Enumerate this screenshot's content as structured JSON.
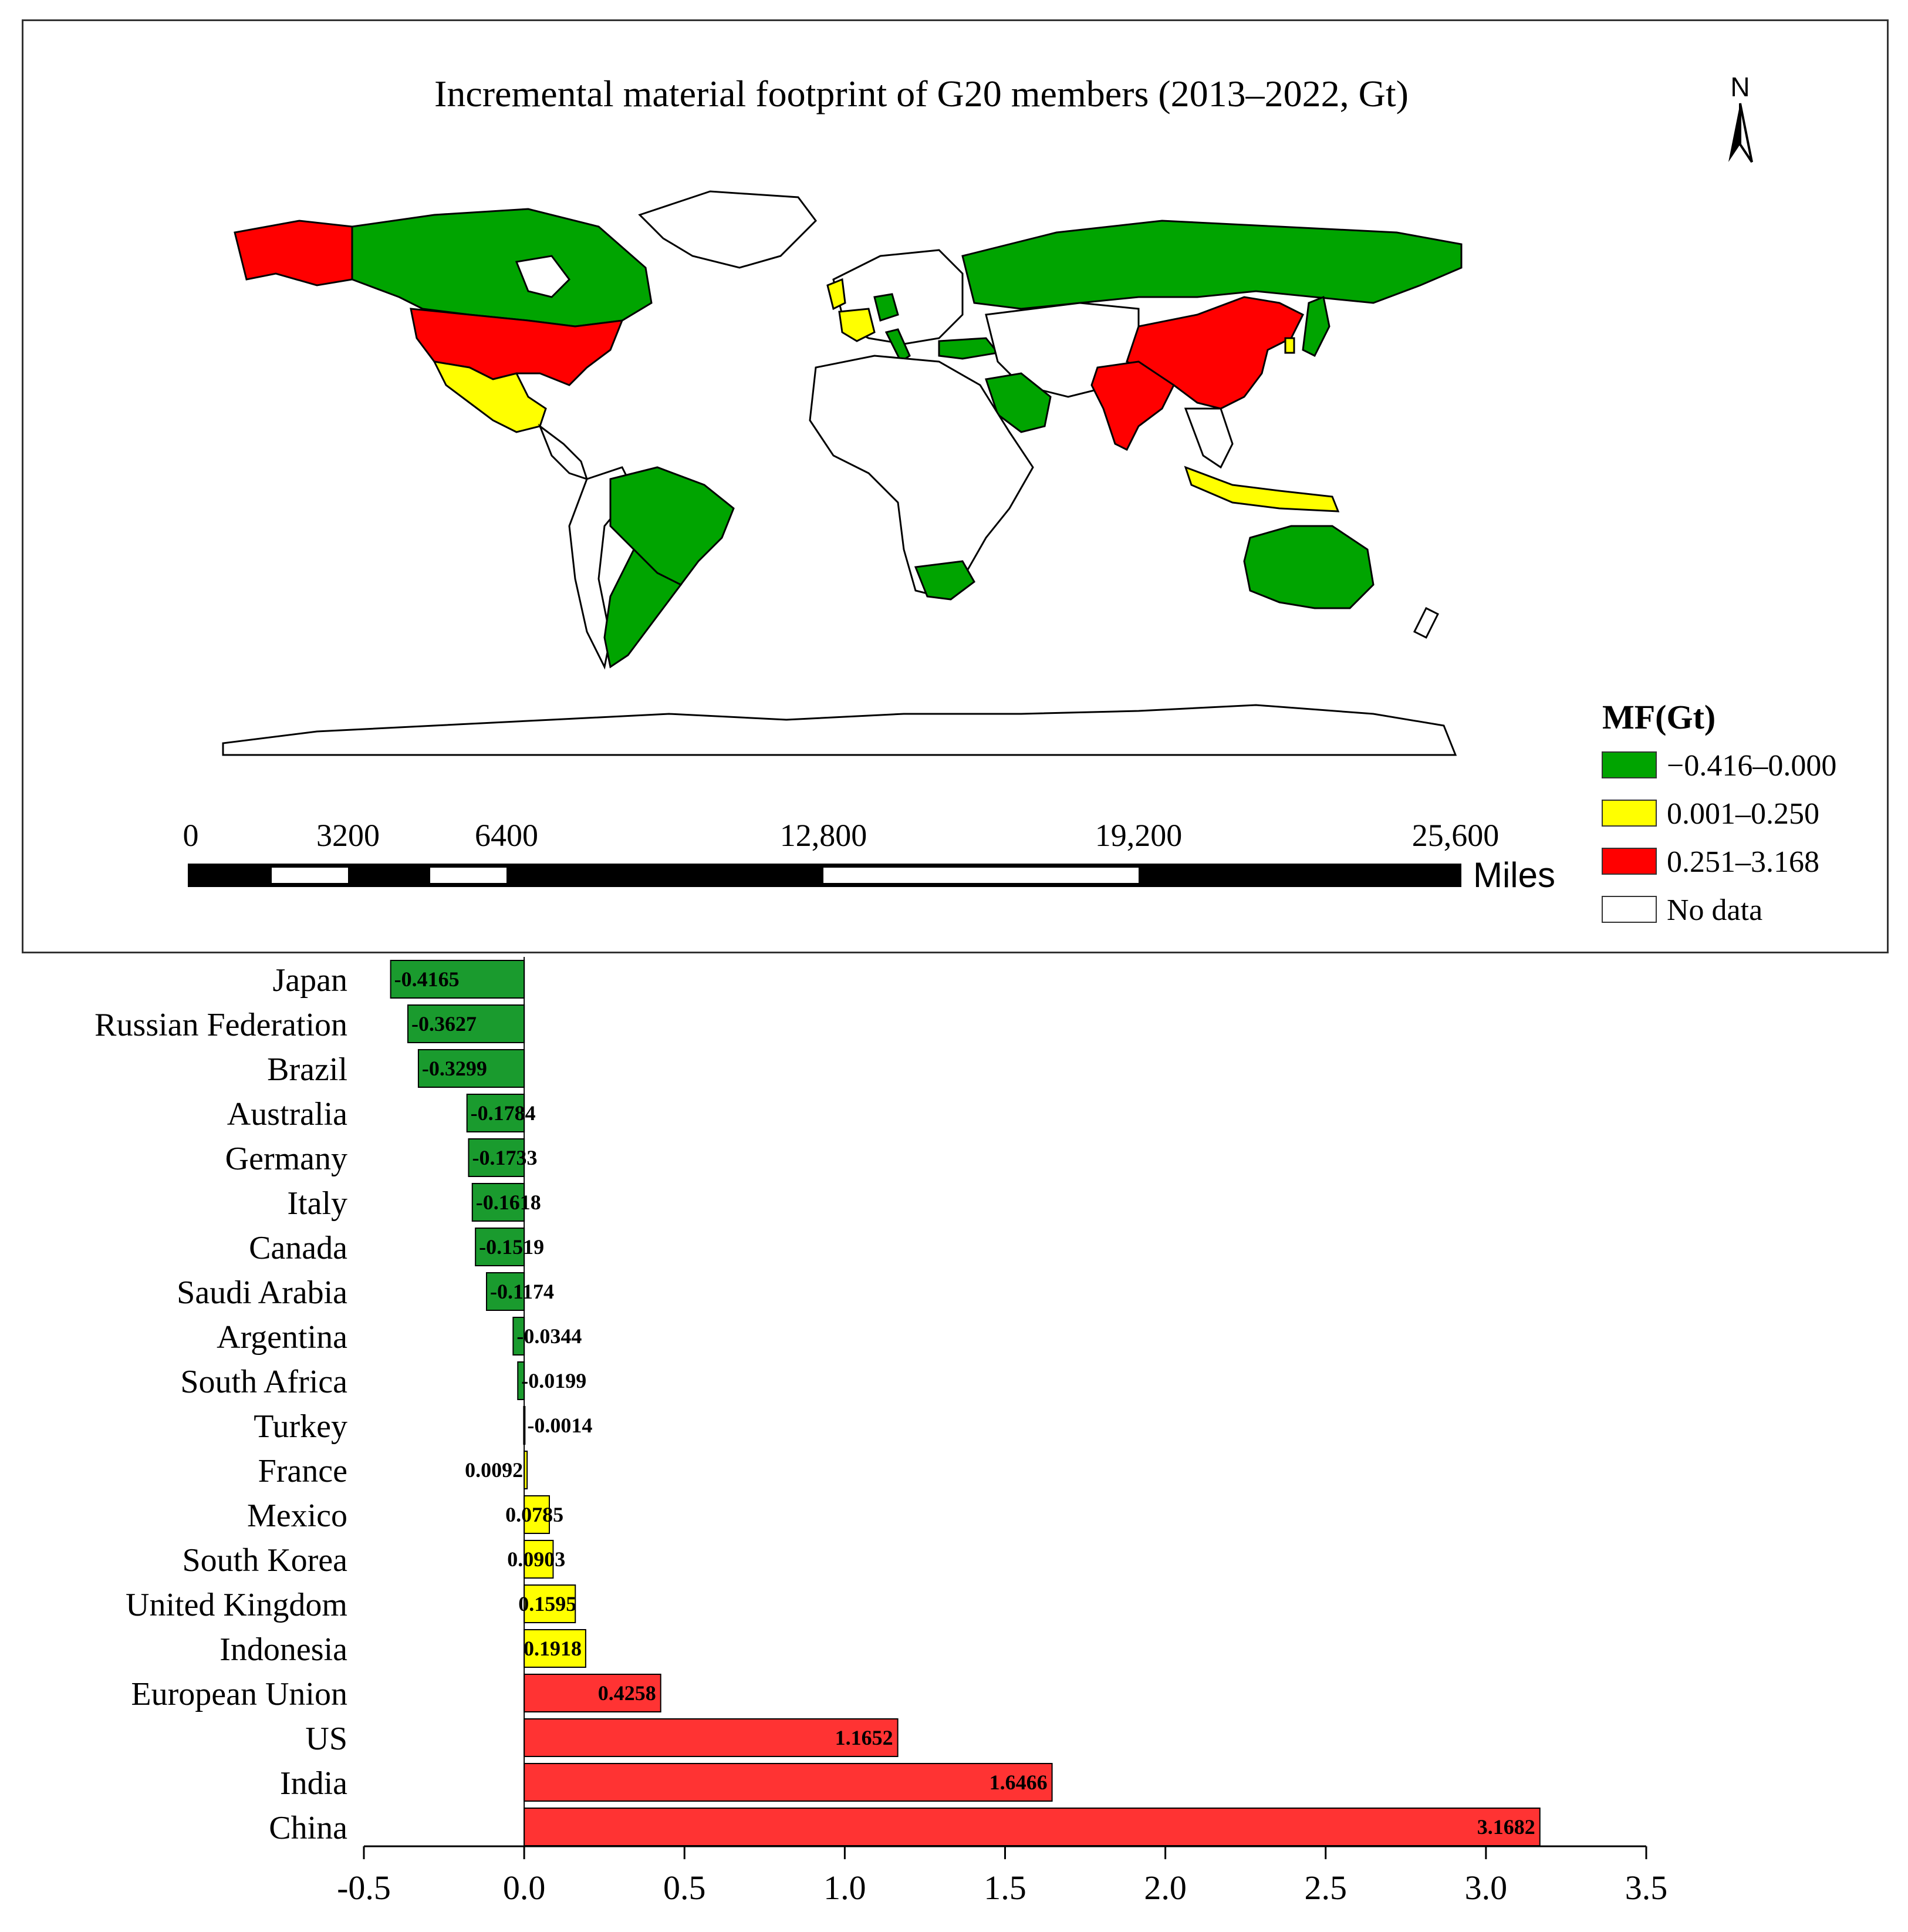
{
  "map": {
    "title": "Incremental material footprint of G20 members (2013–2022, Gt)",
    "north_label": "N",
    "scale_ticks": [
      "0",
      "3200",
      "6400",
      "12,800",
      "19,200",
      "25,600"
    ],
    "scale_unit": "Miles",
    "legend": {
      "title": "MF(Gt)",
      "items": [
        {
          "label": "−0.416–0.000",
          "color": "#00a400"
        },
        {
          "label": "0.001–0.250",
          "color": "#ffff00"
        },
        {
          "label": "0.251–3.168",
          "color": "#ff0000"
        },
        {
          "label": "No data",
          "color": "#ffffff"
        }
      ]
    }
  },
  "chart_data": {
    "type": "bar",
    "orientation": "horizontal",
    "categories": [
      "Japan",
      "Russian Federation",
      "Brazil",
      "Australia",
      "Germany",
      "Italy",
      "Canada",
      "Saudi Arabia",
      "Argentina",
      "South Africa",
      "Turkey",
      "France",
      "Mexico",
      "South Korea",
      "United Kingdom",
      "Indonesia",
      "European Union",
      "US",
      "India",
      "China"
    ],
    "values": [
      -0.4165,
      -0.3627,
      -0.3299,
      -0.1784,
      -0.1733,
      -0.1618,
      -0.1519,
      -0.1174,
      -0.0344,
      -0.0199,
      -0.0014,
      0.0092,
      0.0785,
      0.0903,
      0.1595,
      0.1918,
      0.4258,
      1.1652,
      1.6466,
      3.1682
    ],
    "value_labels": [
      "-0.4165",
      "-0.3627",
      "-0.3299",
      "-0.1784",
      "-0.1733",
      "-0.1618",
      "-0.1519",
      "-0.1174",
      "-0.0344",
      "-0.0199",
      "-0.0014",
      "0.0092",
      "0.0785",
      "0.0903",
      "0.1595",
      "0.1918",
      "0.4258",
      "1.1652",
      "1.6466",
      "3.1682"
    ],
    "xlim": [
      -0.5,
      3.5
    ],
    "xticks": [
      "-0.5",
      "0.0",
      "0.5",
      "1.0",
      "1.5",
      "2.0",
      "2.5",
      "3.0",
      "3.5"
    ],
    "colors": {
      "negative": "#1a9b2e",
      "low": "#ffff00",
      "high": "#ff3333"
    },
    "grid": false
  }
}
